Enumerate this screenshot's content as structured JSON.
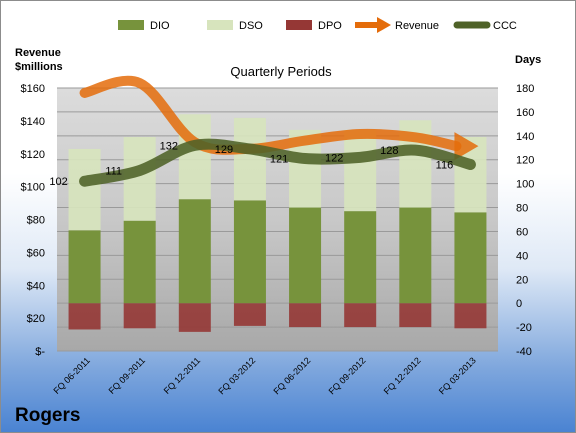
{
  "chart_data": {
    "type": "bar",
    "title": "Quarterly Periods",
    "company": "Rogers",
    "y_left_label_line1": "Revenue",
    "y_left_label_line2": "$millions",
    "y_right_label": "Days",
    "y_left_ticks": [
      "$-",
      "$20",
      "$40",
      "$60",
      "$80",
      "$100",
      "$120",
      "$140",
      "$160"
    ],
    "y_left_range": [
      0,
      160
    ],
    "y_right_range": [
      -40,
      180
    ],
    "y_right_ticks": [
      "-40",
      "-20",
      "0",
      "20",
      "40",
      "60",
      "80",
      "100",
      "120",
      "140",
      "160",
      "180"
    ],
    "categories": [
      "FQ 06-2011",
      "FQ 09-2011",
      "FQ 12-2011",
      "FQ 03-2012",
      "FQ 06-2012",
      "FQ 09-2012",
      "FQ 12-2012",
      "FQ 03-2013"
    ],
    "series": [
      {
        "name": "DIO",
        "axis": "right",
        "kind": "stacked-bar",
        "color": "#77933c",
        "values": [
          61,
          69,
          87,
          86,
          80,
          77,
          80,
          76
        ]
      },
      {
        "name": "DSO",
        "axis": "right",
        "kind": "stacked-bar",
        "color": "#d7e4bd",
        "values": [
          68,
          70,
          71,
          69,
          65,
          68,
          73,
          63
        ]
      },
      {
        "name": "DPO",
        "axis": "right",
        "kind": "negative-bar",
        "color": "#953735",
        "values": [
          -22,
          -21,
          -24,
          -19,
          -20,
          -20,
          -20,
          -21
        ]
      },
      {
        "name": "Revenue",
        "axis": "left",
        "kind": "line",
        "color": "#e46c0a",
        "values": [
          157,
          163,
          127,
          123,
          128,
          132,
          130,
          124
        ]
      },
      {
        "name": "CCC",
        "axis": "right",
        "kind": "line",
        "color": "#4f6228",
        "values": [
          102,
          111,
          132,
          129,
          121,
          122,
          128,
          116
        ]
      }
    ],
    "ccc_labels": [
      "102",
      "111",
      "132",
      "129",
      "121",
      "122",
      "128",
      "116"
    ],
    "legend_position": "top"
  }
}
